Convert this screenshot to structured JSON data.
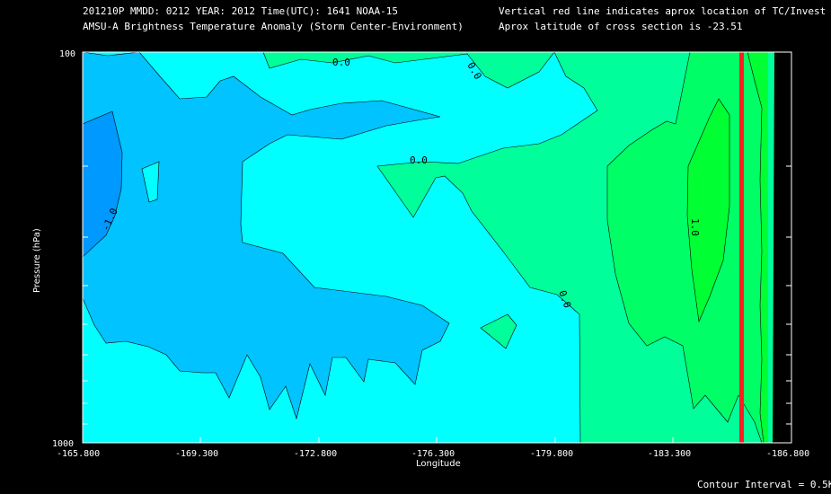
{
  "header": {
    "line1": "201210P  MMDD: 0212 YEAR: 2012 Time(UTC): 1641 NOAA-15",
    "line2": "AMSU-A Brightness Temperature Anomaly (Storm Center-Environment)",
    "line3": "Vertical red line indicates aprox location of TC/Invest",
    "line4": "Aprox latitude of cross section is -23.51"
  },
  "footer": {
    "contour_interval": "Contour Interval = 0.5K"
  },
  "chart_data": {
    "type": "heatmap",
    "xlabel": "Longitude",
    "ylabel": "Pressure (hPa)",
    "xlim": [
      -165.8,
      -186.8
    ],
    "ylim": [
      1000,
      100
    ],
    "yscale": "log",
    "x_ticks": [
      "-165.800",
      "-169.300",
      "-172.800",
      "-176.300",
      "-179.800",
      "-183.300",
      "-186.800"
    ],
    "y_ticks": [
      "100",
      "1000"
    ],
    "contour_labels": [
      "-1.0",
      "0.0",
      "0.0",
      "0.0",
      "0.0",
      "1.0"
    ],
    "storm_center_longitude": -184.2,
    "colors": {
      "background": "#000000",
      "anom_minus_1_5": "#0099FF",
      "anom_minus_1_0": "#00C3FF",
      "anom_minus_0_5": "#00FFFF",
      "anom_0_0": "#00FF9A",
      "anom_0_5": "#00FF66",
      "anom_1_0": "#00FF33",
      "storm_line": "#FF1E1E"
    }
  }
}
